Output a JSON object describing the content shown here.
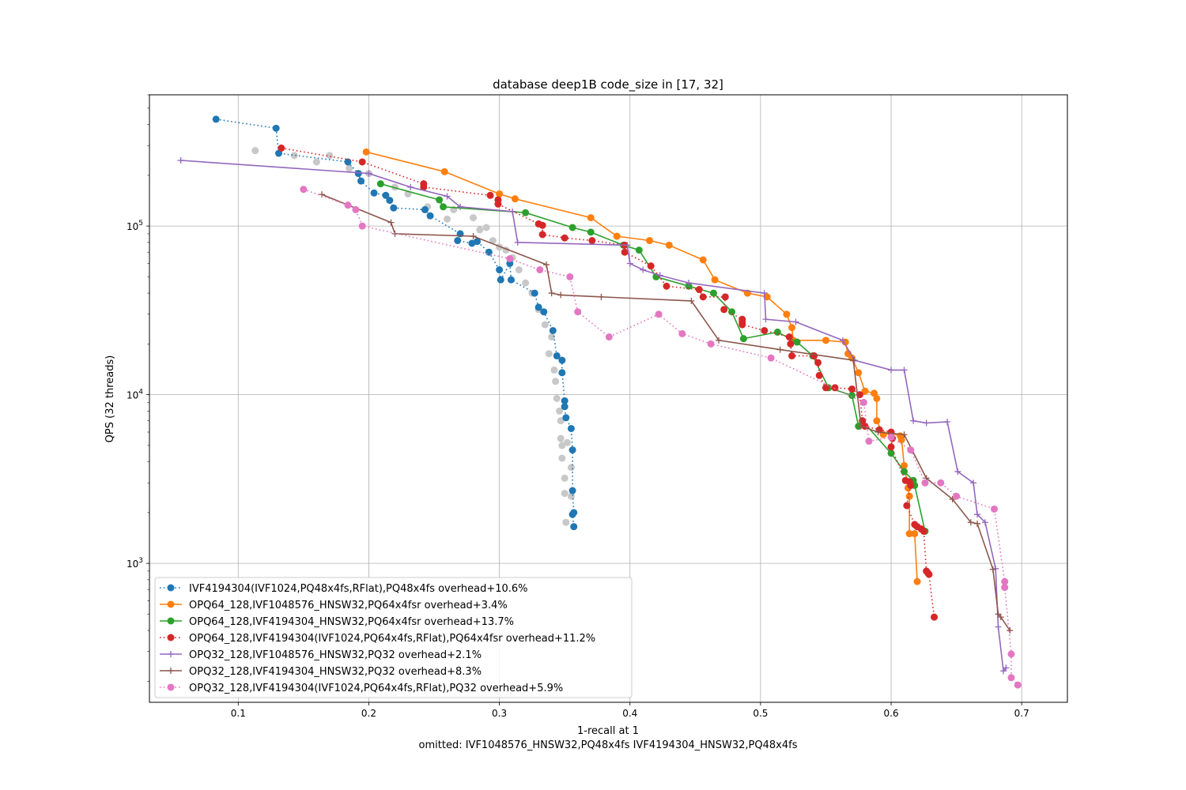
{
  "chart_data": {
    "type": "scatter",
    "title": "database deep1B code_size in [17, 32]",
    "xlabel": "1-recall at 1",
    "xlabel_note": "omitted: IVF1048576_HNSW32,PQ48x4fs IVF4194304_HNSW32,PQ48x4fs",
    "ylabel": "QPS (32 threads)",
    "xlim": [
      0.032,
      0.735
    ],
    "ylim": [
      150,
      600000
    ],
    "yscale": "log",
    "grid": true,
    "legend_position": "lower-left",
    "x_ticks": [
      "0.1",
      "0.2",
      "0.3",
      "0.4",
      "0.5",
      "0.6",
      "0.7"
    ],
    "y_ticks": [
      {
        "base": "10",
        "exp": "3",
        "value": 1000
      },
      {
        "base": "10",
        "exp": "4",
        "value": 10000
      },
      {
        "base": "10",
        "exp": "5",
        "value": 100000
      }
    ],
    "background_points": {
      "color": "#c8c8c8",
      "points": [
        [
          0.113,
          280000
        ],
        [
          0.143,
          262000
        ],
        [
          0.17,
          262000
        ],
        [
          0.16,
          240000
        ],
        [
          0.185,
          220000
        ],
        [
          0.2,
          205000
        ],
        [
          0.22,
          170000
        ],
        [
          0.23,
          155000
        ],
        [
          0.245,
          130000
        ],
        [
          0.265,
          125000
        ],
        [
          0.26,
          110000
        ],
        [
          0.28,
          112000
        ],
        [
          0.29,
          98000
        ],
        [
          0.285,
          95000
        ],
        [
          0.295,
          82000
        ],
        [
          0.3,
          75000
        ],
        [
          0.305,
          72000
        ],
        [
          0.31,
          65000
        ],
        [
          0.315,
          55000
        ],
        [
          0.32,
          46000
        ],
        [
          0.325,
          40000
        ],
        [
          0.33,
          32000
        ],
        [
          0.335,
          26000
        ],
        [
          0.34,
          22000
        ],
        [
          0.338,
          17500
        ],
        [
          0.342,
          14000
        ],
        [
          0.343,
          12000
        ],
        [
          0.344,
          9500
        ],
        [
          0.346,
          8000
        ],
        [
          0.347,
          7000
        ],
        [
          0.347,
          5500
        ],
        [
          0.348,
          5000
        ],
        [
          0.348,
          4200
        ],
        [
          0.35,
          3200
        ],
        [
          0.35,
          2600
        ],
        [
          0.351,
          1750
        ],
        [
          0.355,
          3700
        ],
        [
          0.355,
          2500
        ],
        [
          0.352,
          5200
        ]
      ]
    },
    "series": [
      {
        "name": "IVF4194304(IVF1024,PQ48x4fs,RFlat),PQ48x4fs overhead+10.6%",
        "color": "#1f77b4",
        "line": "dotted",
        "marker": "circle",
        "points": [
          [
            0.083,
            430000
          ],
          [
            0.129,
            380000
          ],
          [
            0.131,
            270000
          ],
          [
            0.184,
            240000
          ],
          [
            0.192,
            205000
          ],
          [
            0.194,
            185000
          ],
          [
            0.204,
            157000
          ],
          [
            0.213,
            152000
          ],
          [
            0.216,
            142000
          ],
          [
            0.219,
            128000
          ],
          [
            0.243,
            125000
          ],
          [
            0.247,
            115000
          ],
          [
            0.27,
            90000
          ],
          [
            0.268,
            82000
          ],
          [
            0.279,
            79000
          ],
          [
            0.283,
            81000
          ],
          [
            0.292,
            70000
          ],
          [
            0.3,
            55000
          ],
          [
            0.301,
            48000
          ],
          [
            0.308,
            60000
          ],
          [
            0.309,
            48000
          ],
          [
            0.327,
            40000
          ],
          [
            0.33,
            33000
          ],
          [
            0.334,
            31000
          ],
          [
            0.341,
            24000
          ],
          [
            0.344,
            17000
          ],
          [
            0.348,
            16000
          ],
          [
            0.348,
            13500
          ],
          [
            0.35,
            9200
          ],
          [
            0.35,
            8500
          ],
          [
            0.351,
            7300
          ],
          [
            0.355,
            6300
          ],
          [
            0.356,
            4700
          ],
          [
            0.356,
            2700
          ],
          [
            0.357,
            2000
          ],
          [
            0.356,
            1950
          ],
          [
            0.357,
            1650
          ]
        ]
      },
      {
        "name": "OPQ64_128,IVF1048576_HNSW32,PQ64x4fsr overhead+3.4%",
        "color": "#ff7f0e",
        "line": "solid",
        "marker": "circle",
        "points": [
          [
            0.198,
            275000
          ],
          [
            0.258,
            210000
          ],
          [
            0.3,
            155000
          ],
          [
            0.312,
            145000
          ],
          [
            0.37,
            112000
          ],
          [
            0.39,
            87000
          ],
          [
            0.415,
            82000
          ],
          [
            0.43,
            77000
          ],
          [
            0.456,
            63000
          ],
          [
            0.465,
            48000
          ],
          [
            0.49,
            40000
          ],
          [
            0.505,
            38000
          ],
          [
            0.52,
            30000
          ],
          [
            0.524,
            25000
          ],
          [
            0.525,
            21000
          ],
          [
            0.55,
            21000
          ],
          [
            0.565,
            20500
          ],
          [
            0.567,
            17500
          ],
          [
            0.57,
            16500
          ],
          [
            0.575,
            13500
          ],
          [
            0.58,
            10500
          ],
          [
            0.587,
            10200
          ],
          [
            0.589,
            9500
          ],
          [
            0.589,
            7000
          ],
          [
            0.594,
            5800
          ],
          [
            0.6,
            5900
          ],
          [
            0.607,
            5700
          ],
          [
            0.608,
            5400
          ],
          [
            0.61,
            3800
          ],
          [
            0.613,
            2800
          ],
          [
            0.614,
            2500
          ],
          [
            0.614,
            1500
          ],
          [
            0.618,
            1500
          ],
          [
            0.62,
            780
          ]
        ]
      },
      {
        "name": "OPQ64_128,IVF4194304_HNSW32,PQ64x4fsr overhead+13.7%",
        "color": "#2ca02c",
        "line": "solid",
        "marker": "circle",
        "points": [
          [
            0.209,
            178000
          ],
          [
            0.254,
            143000
          ],
          [
            0.257,
            130000
          ],
          [
            0.32,
            120000
          ],
          [
            0.356,
            98000
          ],
          [
            0.37,
            92000
          ],
          [
            0.395,
            77000
          ],
          [
            0.407,
            72000
          ],
          [
            0.42,
            50000
          ],
          [
            0.445,
            44000
          ],
          [
            0.464,
            40000
          ],
          [
            0.478,
            31000
          ],
          [
            0.487,
            21500
          ],
          [
            0.513,
            23500
          ],
          [
            0.528,
            20500
          ],
          [
            0.54,
            17000
          ],
          [
            0.552,
            11000
          ],
          [
            0.57,
            9900
          ],
          [
            0.575,
            6500
          ],
          [
            0.578,
            7000
          ],
          [
            0.6,
            4500
          ],
          [
            0.61,
            3500
          ],
          [
            0.617,
            3100
          ],
          [
            0.618,
            2900
          ],
          [
            0.626,
            1550
          ]
        ]
      },
      {
        "name": "OPQ64_128,IVF4194304(IVF1024,PQ64x4fs,RFlat),PQ64x4fsr overhead+11.2%",
        "color": "#d62728",
        "line": "dotted",
        "marker": "circle",
        "points": [
          [
            0.133,
            290000
          ],
          [
            0.195,
            240000
          ],
          [
            0.242,
            178000
          ],
          [
            0.242,
            170000
          ],
          [
            0.293,
            152000
          ],
          [
            0.299,
            143000
          ],
          [
            0.299,
            135000
          ],
          [
            0.33,
            103000
          ],
          [
            0.333,
            101000
          ],
          [
            0.333,
            89000
          ],
          [
            0.35,
            85000
          ],
          [
            0.371,
            82000
          ],
          [
            0.396,
            77000
          ],
          [
            0.396,
            70000
          ],
          [
            0.416,
            58000
          ],
          [
            0.428,
            44000
          ],
          [
            0.453,
            42000
          ],
          [
            0.456,
            38000
          ],
          [
            0.473,
            38000
          ],
          [
            0.472,
            32000
          ],
          [
            0.486,
            28000
          ],
          [
            0.486,
            27000
          ],
          [
            0.486,
            26000
          ],
          [
            0.503,
            24000
          ],
          [
            0.522,
            22000
          ],
          [
            0.523,
            20000
          ],
          [
            0.524,
            17000
          ],
          [
            0.541,
            17000
          ],
          [
            0.544,
            15500
          ],
          [
            0.545,
            13000
          ],
          [
            0.55,
            11000
          ],
          [
            0.557,
            11000
          ],
          [
            0.57,
            10800
          ],
          [
            0.576,
            10000
          ],
          [
            0.578,
            7000
          ],
          [
            0.58,
            6500
          ],
          [
            0.591,
            6200
          ],
          [
            0.6,
            6000
          ],
          [
            0.601,
            5500
          ],
          [
            0.6,
            4900
          ],
          [
            0.611,
            3100
          ],
          [
            0.614,
            3050
          ],
          [
            0.615,
            2900
          ],
          [
            0.612,
            2200
          ],
          [
            0.618,
            1700
          ],
          [
            0.62,
            1650
          ],
          [
            0.623,
            1600
          ],
          [
            0.625,
            1550
          ],
          [
            0.627,
            900
          ],
          [
            0.628,
            880
          ],
          [
            0.629,
            860
          ],
          [
            0.633,
            480
          ]
        ]
      },
      {
        "name": "OPQ32_128,IVF1048576_HNSW32,PQ32 overhead+2.1%",
        "color": "#9467bd",
        "line": "solid",
        "marker": "plus",
        "points": [
          [
            0.056,
            245000
          ],
          [
            0.2,
            205000
          ],
          [
            0.232,
            170000
          ],
          [
            0.26,
            150000
          ],
          [
            0.27,
            130000
          ],
          [
            0.31,
            122000
          ],
          [
            0.314,
            80000
          ],
          [
            0.398,
            77000
          ],
          [
            0.4,
            60000
          ],
          [
            0.41,
            55000
          ],
          [
            0.423,
            51000
          ],
          [
            0.445,
            46000
          ],
          [
            0.503,
            40000
          ],
          [
            0.504,
            28000
          ],
          [
            0.527,
            27000
          ],
          [
            0.563,
            21000
          ],
          [
            0.572,
            16000
          ],
          [
            0.6,
            14000
          ],
          [
            0.61,
            14000
          ],
          [
            0.617,
            7000
          ],
          [
            0.627,
            6800
          ],
          [
            0.643,
            6900
          ],
          [
            0.651,
            3500
          ],
          [
            0.663,
            3000
          ],
          [
            0.666,
            1950
          ],
          [
            0.672,
            1750
          ],
          [
            0.68,
            930
          ],
          [
            0.682,
            420
          ],
          [
            0.686,
            230
          ],
          [
            0.688,
            240
          ]
        ]
      },
      {
        "name": "OPQ32_128,IVF4194304_HNSW32,PQ32 overhead+8.3%",
        "color": "#8c564b",
        "line": "solid",
        "marker": "plus",
        "points": [
          [
            0.164,
            154000
          ],
          [
            0.217,
            105000
          ],
          [
            0.22,
            90000
          ],
          [
            0.28,
            87000
          ],
          [
            0.336,
            59000
          ],
          [
            0.34,
            40000
          ],
          [
            0.347,
            39000
          ],
          [
            0.378,
            38000
          ],
          [
            0.447,
            36000
          ],
          [
            0.468,
            21000
          ],
          [
            0.515,
            18500
          ],
          [
            0.571,
            16000
          ],
          [
            0.577,
            6500
          ],
          [
            0.59,
            6000
          ],
          [
            0.61,
            5800
          ],
          [
            0.627,
            3200
          ],
          [
            0.647,
            2400
          ],
          [
            0.661,
            1750
          ],
          [
            0.666,
            1720
          ],
          [
            0.678,
            920
          ],
          [
            0.682,
            500
          ],
          [
            0.684,
            480
          ],
          [
            0.691,
            400
          ]
        ]
      },
      {
        "name": "OPQ32_128,IVF4194304(IVF1024,PQ64x4fs,RFlat),PQ32 overhead+5.9%",
        "color": "#e377c2",
        "line": "dotted",
        "marker": "circle",
        "points": [
          [
            0.15,
            165000
          ],
          [
            0.184,
            133000
          ],
          [
            0.19,
            125000
          ],
          [
            0.195,
            100000
          ],
          [
            0.308,
            64000
          ],
          [
            0.331,
            55000
          ],
          [
            0.354,
            50000
          ],
          [
            0.36,
            31000
          ],
          [
            0.384,
            22000
          ],
          [
            0.422,
            30000
          ],
          [
            0.44,
            23000
          ],
          [
            0.462,
            20000
          ],
          [
            0.508,
            16500
          ],
          [
            0.579,
            9000
          ],
          [
            0.583,
            5300
          ],
          [
            0.6,
            5600
          ],
          [
            0.615,
            4700
          ],
          [
            0.626,
            3000
          ],
          [
            0.638,
            3000
          ],
          [
            0.65,
            2500
          ],
          [
            0.679,
            2100
          ],
          [
            0.687,
            780
          ],
          [
            0.687,
            720
          ],
          [
            0.692,
            290
          ],
          [
            0.692,
            210
          ],
          [
            0.697,
            190
          ]
        ]
      }
    ]
  }
}
